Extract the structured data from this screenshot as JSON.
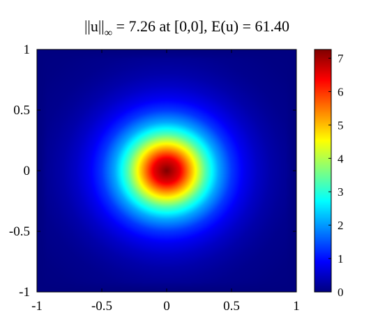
{
  "chart_data": {
    "type": "heatmap",
    "title": {
      "norm_prefix": "||u||",
      "norm_subscript": "∞",
      "rest": " = 7.26 at [0,0], E(u) = 61.40"
    },
    "xlabel": "",
    "ylabel": "",
    "xlim": [
      -1,
      1
    ],
    "ylim": [
      -1,
      1
    ],
    "x_ticks": [
      "-1",
      "-0.5",
      "0",
      "0.5",
      "1"
    ],
    "y_ticks": [
      "1",
      "0.5",
      "0",
      "-0.5",
      "-1"
    ],
    "x_tick_values": [
      -1,
      -0.5,
      0,
      0.5,
      1
    ],
    "y_tick_values": [
      1,
      0.5,
      0,
      -0.5,
      -1
    ],
    "colorbar": {
      "ticks": [
        "7",
        "6",
        "5",
        "4",
        "3",
        "2",
        "1",
        "0"
      ],
      "tick_values": [
        7,
        6,
        5,
        4,
        3,
        2,
        1,
        0
      ],
      "range": [
        0,
        7.26
      ],
      "colormap": "jet"
    },
    "peak": {
      "value": 7.26,
      "x": 0,
      "y": 0
    },
    "energy": 61.4,
    "radial_profile": {
      "r": [
        0,
        0.1,
        0.2,
        0.3,
        0.4,
        0.5,
        0.6,
        0.7,
        0.8,
        0.9,
        1.0,
        1.2,
        1.414
      ],
      "u": [
        7.26,
        6.5,
        4.9,
        3.3,
        2.1,
        1.3,
        0.8,
        0.5,
        0.3,
        0.18,
        0.1,
        0.03,
        0
      ]
    },
    "grid": false,
    "legend": "none"
  }
}
